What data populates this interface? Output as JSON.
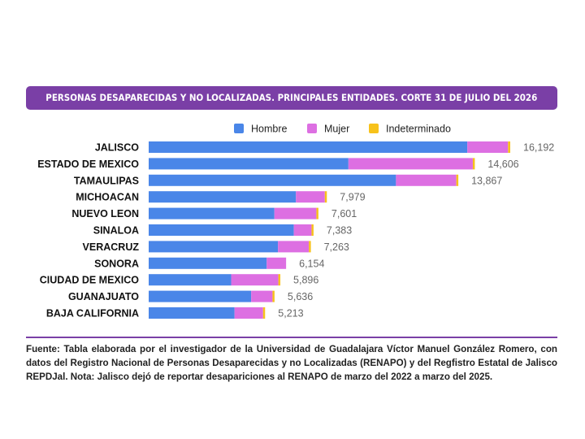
{
  "chart_data": {
    "type": "bar",
    "orientation": "horizontal",
    "stacked": true,
    "title": "PERSONAS DESAPARECIDAS Y NO LOCALIZADAS. PRINCIPALES ENTIDADES. CORTE 31 DE JULIO DEL 2026",
    "xlabel": "",
    "ylabel": "",
    "xlim": [
      0,
      16192
    ],
    "grid": false,
    "legend_position": "top",
    "categories": [
      "JALISCO",
      "ESTADO DE MEXICO",
      "TAMAULIPAS",
      "MICHOACAN",
      "NUEVO LEON",
      "SINALOA",
      "VERACRUZ",
      "SONORA",
      "CIUDAD DE MEXICO",
      "GUANAJUATO",
      "BAJA CALIFORNIA"
    ],
    "series": [
      {
        "name": "Hombre",
        "color": "#4a86e8",
        "values": [
          14270,
          8945,
          11075,
          6595,
          5630,
          6500,
          5790,
          5285,
          3695,
          4590,
          3845
        ]
      },
      {
        "name": "Mujer",
        "color": "#dd6fe2",
        "values": [
          1822,
          5571,
          2702,
          1294,
          1881,
          793,
          1383,
          869,
          2111,
          956,
          1278
        ]
      },
      {
        "name": "Indeterminado",
        "color": "#f7c21b",
        "values": [
          100,
          90,
          90,
          90,
          90,
          90,
          90,
          0,
          90,
          90,
          90
        ]
      }
    ],
    "totals": [
      "16,192",
      "14,606",
      "13,867",
      "7,979",
      "7,601",
      "7,383",
      "7,263",
      "6,154",
      "5,896",
      "5,636",
      "5,213"
    ]
  },
  "footer": {
    "source_note": "Fuente: Tabla elaborada por el investigador de la Universidad de Guadalajara Víctor Manuel González Romero, con datos del Registro Nacional de Personas Desaparecidas y no Localizadas (RENAPO) y del Regfistro Estatal de Jalisco REPDJal. Nota: Jalisco dejó de reportar desapariciones al RENAPO de marzo del 2022 a marzo del 2025."
  }
}
